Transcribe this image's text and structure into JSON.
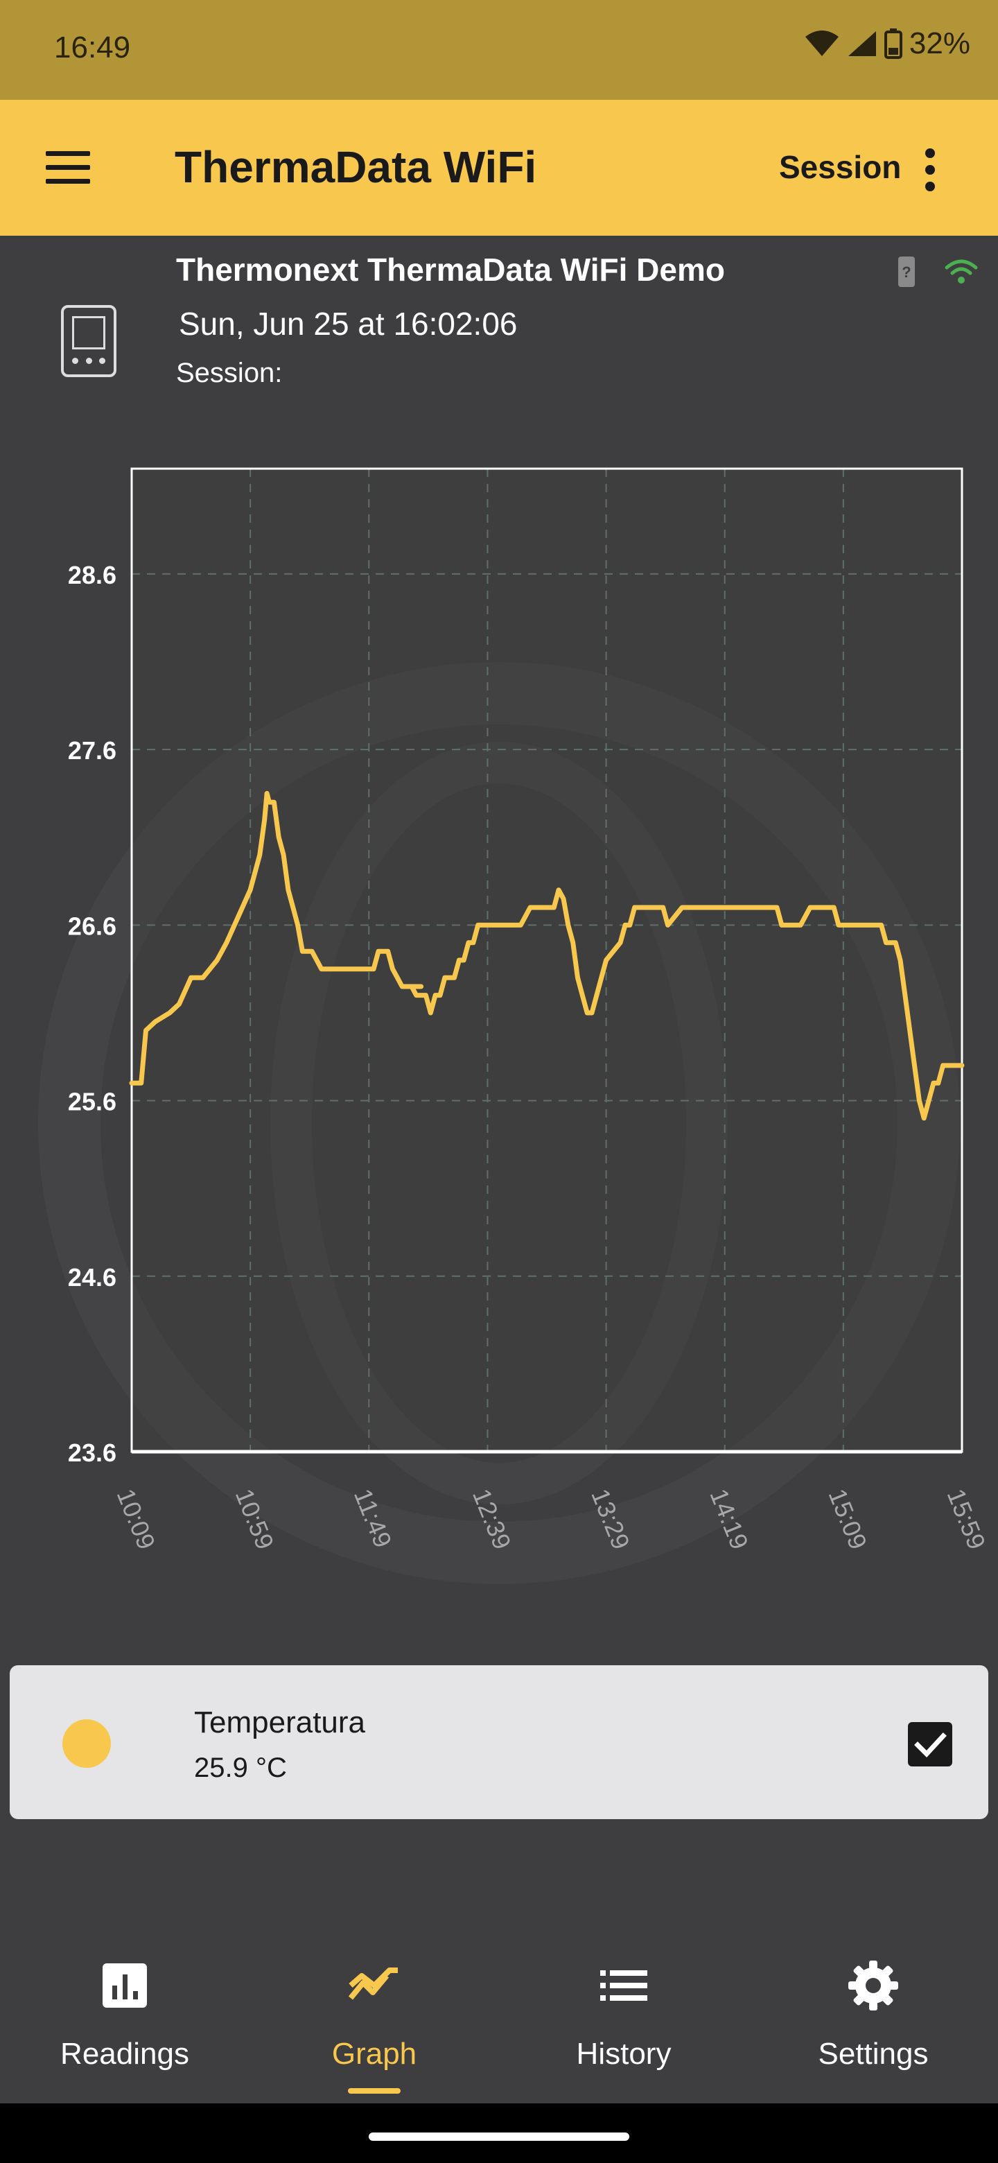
{
  "status_bar": {
    "time": "16:49",
    "battery": "32%"
  },
  "app_bar": {
    "title": "ThermaData WiFi",
    "session_label": "Session"
  },
  "device": {
    "name": "Thermonext ThermaData WiFi Demo",
    "date": "Sun, Jun 25  at 16:02:06",
    "session": "Session:",
    "battery_icon_label": "?"
  },
  "chart_data": {
    "type": "line",
    "title": "",
    "xlabel": "",
    "ylabel": "",
    "x_ticks": [
      "10:09",
      "10:59",
      "11:49",
      "12:39",
      "13:29",
      "14:19",
      "15:09",
      "15:59"
    ],
    "y_ticks": [
      "28.6",
      "27.6",
      "26.6",
      "25.6",
      "24.6",
      "23.6"
    ],
    "ylim": [
      23.6,
      29.2
    ],
    "xlim_minutes": [
      0,
      350
    ],
    "grid": true,
    "series": [
      {
        "name": "Temperatura",
        "color": "#f8c74d",
        "x": [
          0,
          4,
          6,
          10,
          16,
          20,
          25,
          30,
          36,
          40,
          50,
          54,
          56,
          57,
          58,
          60,
          62,
          64,
          66,
          68,
          70,
          72,
          76,
          78,
          80,
          84,
          98,
          102,
          104,
          106,
          108,
          110,
          112,
          114,
          116,
          122,
          118,
          120,
          124,
          126,
          128,
          130,
          132,
          134,
          136,
          138,
          140,
          142,
          144,
          146,
          148,
          150,
          160,
          164,
          168,
          172,
          174,
          176,
          178,
          180,
          182,
          184,
          186,
          188,
          190,
          192,
          194,
          196,
          198,
          200,
          206,
          208,
          210,
          212,
          220,
          222,
          224,
          226,
          232,
          238,
          244,
          246,
          248,
          250,
          252,
          254,
          256,
          258,
          260,
          268,
          270,
          272,
          274,
          276,
          278,
          282,
          286,
          290,
          294,
          296,
          298,
          300,
          302,
          304,
          306,
          308,
          310,
          312,
          314,
          316,
          318,
          320,
          322,
          324,
          326,
          328,
          330,
          332,
          334,
          336,
          338,
          340,
          342,
          344,
          346,
          348,
          350
        ],
        "y": [
          25.7,
          25.7,
          26.0,
          26.05,
          26.1,
          26.15,
          26.3,
          26.3,
          26.4,
          26.5,
          26.8,
          27.0,
          27.2,
          27.35,
          27.3,
          27.3,
          27.1,
          27.0,
          26.8,
          26.7,
          26.6,
          26.45,
          26.45,
          26.4,
          26.35,
          26.35,
          26.35,
          26.35,
          26.45,
          26.45,
          26.45,
          26.35,
          26.3,
          26.25,
          26.25,
          26.25,
          26.25,
          26.2,
          26.2,
          26.1,
          26.2,
          26.2,
          26.3,
          26.3,
          26.3,
          26.4,
          26.4,
          26.5,
          26.5,
          26.6,
          26.6,
          26.6,
          26.6,
          26.6,
          26.7,
          26.7,
          26.7,
          26.7,
          26.7,
          26.8,
          26.75,
          26.6,
          26.5,
          26.3,
          26.2,
          26.1,
          26.1,
          26.2,
          26.3,
          26.4,
          26.5,
          26.6,
          26.6,
          26.7,
          26.7,
          26.7,
          26.7,
          26.6,
          26.7,
          26.7,
          26.7,
          26.7,
          26.7,
          26.7,
          26.7,
          26.7,
          26.7,
          26.7,
          26.7,
          26.7,
          26.7,
          26.7,
          26.6,
          26.6,
          26.6,
          26.6,
          26.7,
          26.7,
          26.7,
          26.7,
          26.6,
          26.6,
          26.6,
          26.6,
          26.6,
          26.6,
          26.6,
          26.6,
          26.6,
          26.6,
          26.5,
          26.5,
          26.5,
          26.4,
          26.2,
          26.0,
          25.8,
          25.6,
          25.5,
          25.6,
          25.7,
          25.7,
          25.8,
          25.8,
          25.8,
          25.8,
          25.8
        ]
      }
    ]
  },
  "legend": {
    "name": "Temperatura",
    "value": "25.9 °C",
    "checked": true,
    "color": "#f8c74d"
  },
  "nav": {
    "items": [
      {
        "label": "Readings",
        "icon": "bar-chart-icon"
      },
      {
        "label": "Graph",
        "icon": "trending-icon"
      },
      {
        "label": "History",
        "icon": "list-icon"
      },
      {
        "label": "Settings",
        "icon": "gear-icon"
      }
    ],
    "active": 1
  },
  "colors": {
    "accent": "#f8c74d",
    "background": "#3e3e40",
    "status_bar": "#b29537"
  }
}
